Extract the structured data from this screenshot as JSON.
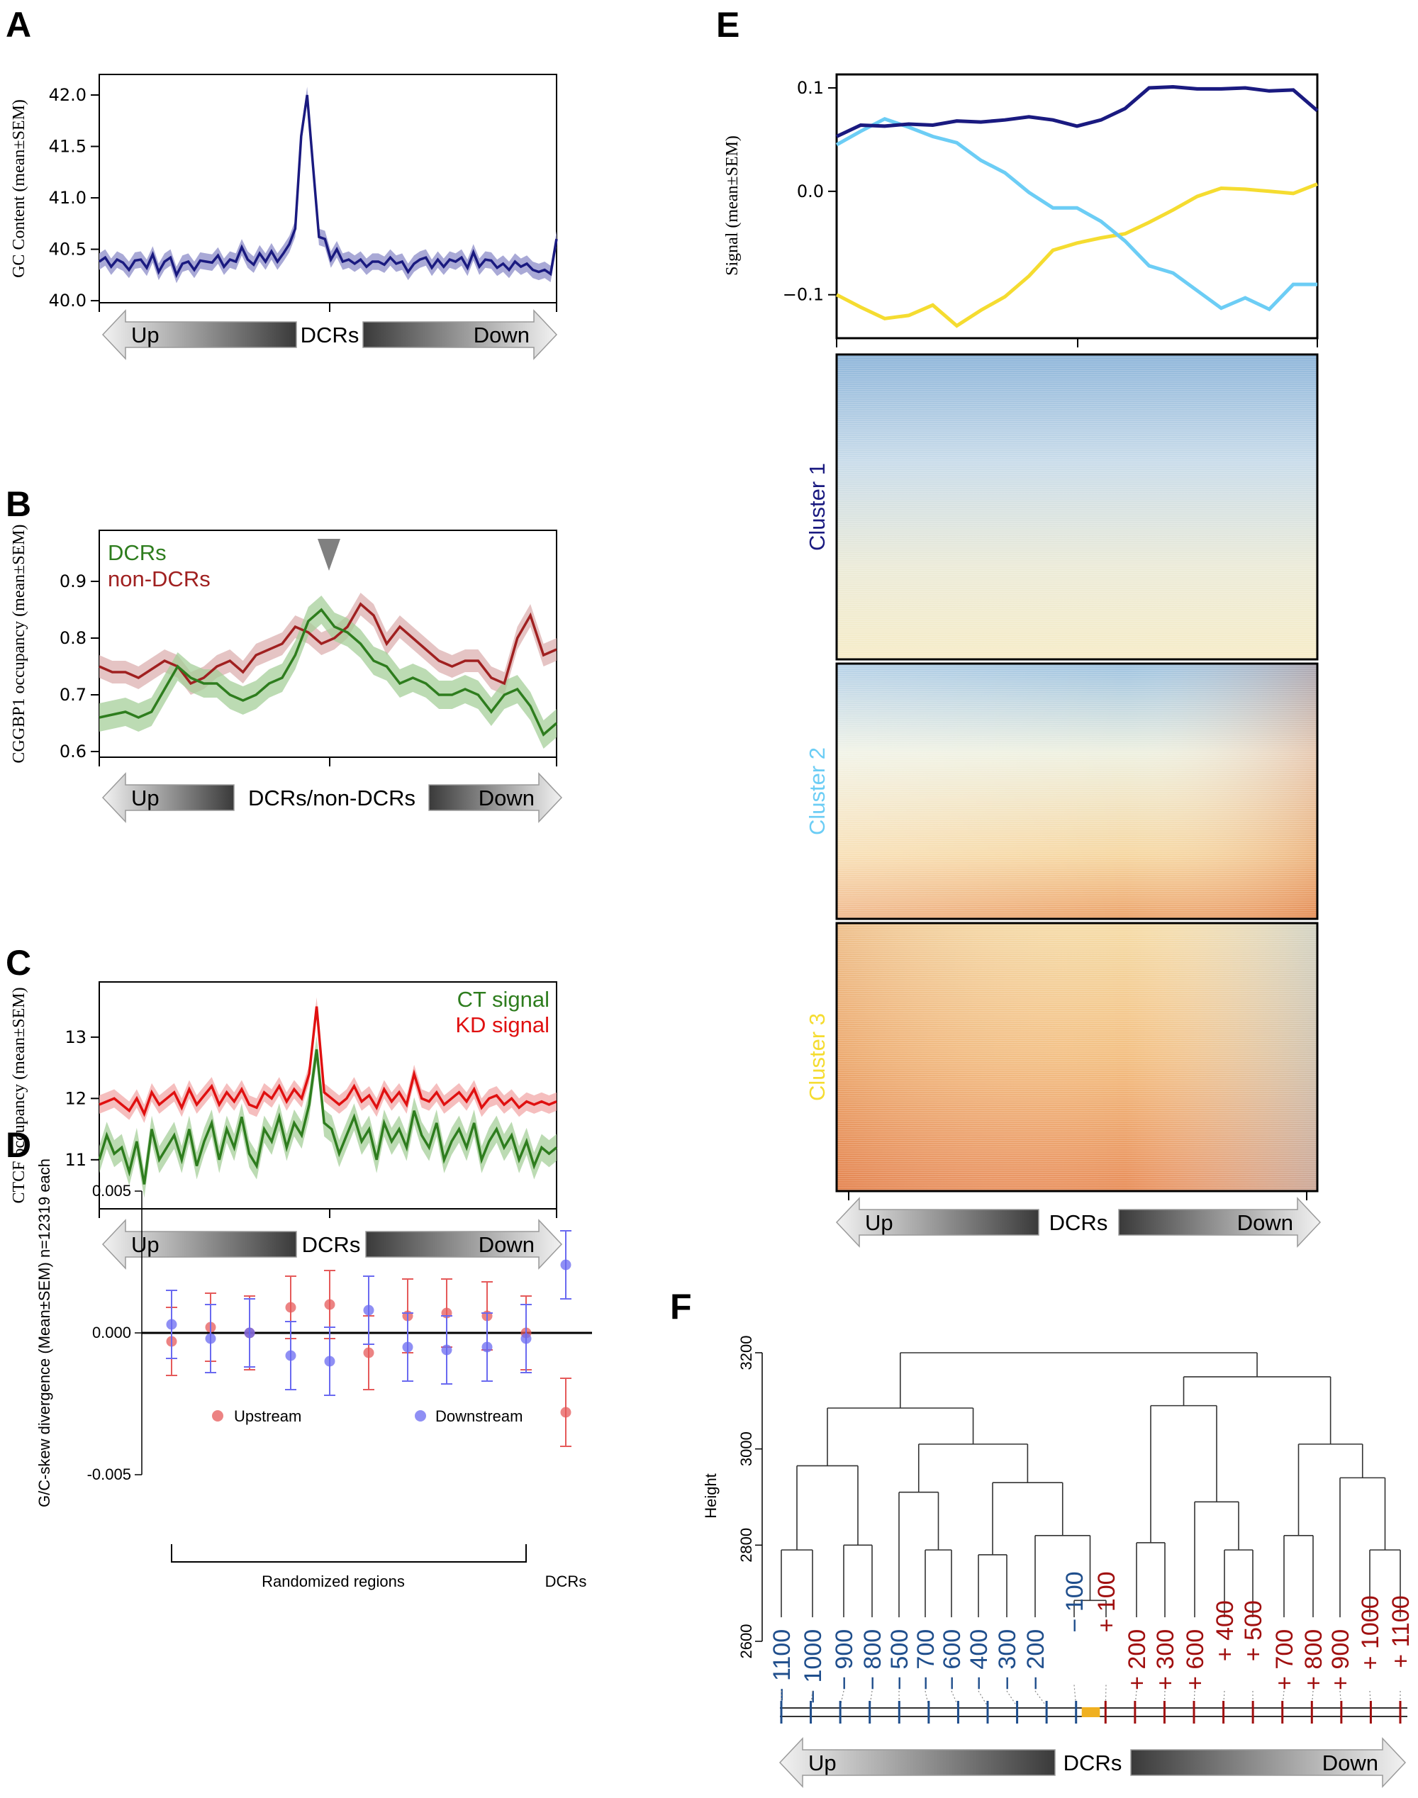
{
  "colors": {
    "navy": "#1a1a80",
    "navy_band": "#a9a9d6",
    "green": "#2e7d1e",
    "green_band": "#a6cf99",
    "darkred": "#a02020",
    "darkred_band": "#dcb0b0",
    "red": "#e01010",
    "red_band": "#f2a8a8",
    "cluster1": "#1a1a80",
    "cluster2": "#6ccdf5",
    "cluster3": "#f5dc30",
    "upstream": "#e55a5a",
    "downstream": "#6a6af0",
    "dend_blue": "#1f4e8c",
    "dend_red": "#a00f0f",
    "center_bar": "#f0b020"
  },
  "chart_data": [
    {
      "panel": "A",
      "type": "line",
      "ylabel": "GC Content (mean±SEM)",
      "ylim": [
        39.98,
        42.2
      ],
      "yticks": [
        "40.0",
        "40.5",
        "41.0",
        "41.5",
        "42.0"
      ],
      "arrow": {
        "left": "Up",
        "center": "DCRs",
        "right": "Down"
      },
      "series": [
        {
          "name": "GC content",
          "sem": 0.08,
          "values": [
            40.38,
            40.42,
            40.33,
            40.4,
            40.37,
            40.3,
            40.39,
            40.4,
            40.32,
            40.45,
            40.28,
            40.38,
            40.42,
            40.25,
            40.36,
            40.38,
            40.3,
            40.39,
            40.38,
            40.37,
            40.44,
            40.33,
            40.4,
            40.38,
            40.52,
            40.4,
            40.35,
            40.46,
            40.38,
            40.48,
            40.38,
            40.46,
            40.55,
            40.7,
            41.6,
            42.0,
            41.3,
            40.62,
            40.6,
            40.4,
            40.5,
            40.38,
            40.4,
            40.36,
            40.4,
            40.33,
            40.38,
            40.38,
            40.35,
            40.42,
            40.36,
            40.38,
            40.28,
            40.36,
            40.4,
            40.42,
            40.32,
            40.4,
            40.33,
            40.4,
            40.38,
            40.42,
            40.32,
            40.47,
            40.33,
            40.4,
            40.39,
            40.32,
            40.36,
            40.3,
            40.38,
            40.33,
            40.36,
            40.3,
            40.28,
            40.3,
            40.26,
            40.6
          ]
        }
      ]
    },
    {
      "panel": "B",
      "type": "line",
      "ylabel": "CGGBP1 occupancy (mean±SEM)",
      "ylim": [
        0.59,
        0.99
      ],
      "yticks": [
        "0.6",
        "0.7",
        "0.8",
        "0.9"
      ],
      "arrow": {
        "left": "Up",
        "center": "DCRs/non-DCRs",
        "right": "Down"
      },
      "series": [
        {
          "name": "DCRs",
          "sem": 0.025,
          "values": [
            0.66,
            0.665,
            0.67,
            0.66,
            0.67,
            0.71,
            0.75,
            0.73,
            0.72,
            0.72,
            0.7,
            0.69,
            0.7,
            0.72,
            0.73,
            0.77,
            0.83,
            0.85,
            0.82,
            0.81,
            0.79,
            0.76,
            0.75,
            0.72,
            0.73,
            0.72,
            0.7,
            0.7,
            0.71,
            0.7,
            0.67,
            0.7,
            0.71,
            0.68,
            0.63,
            0.65
          ]
        },
        {
          "name": "non-DCRs",
          "sem": 0.02,
          "values": [
            0.75,
            0.74,
            0.74,
            0.73,
            0.745,
            0.76,
            0.75,
            0.72,
            0.73,
            0.75,
            0.76,
            0.74,
            0.77,
            0.78,
            0.79,
            0.82,
            0.81,
            0.79,
            0.8,
            0.82,
            0.86,
            0.84,
            0.79,
            0.82,
            0.8,
            0.78,
            0.76,
            0.75,
            0.76,
            0.76,
            0.73,
            0.72,
            0.8,
            0.84,
            0.77,
            0.78
          ]
        }
      ]
    },
    {
      "panel": "C",
      "type": "line",
      "ylabel": "CTCF occupancy (mean±SEM)",
      "ylim": [
        10.2,
        13.9
      ],
      "yticks": [
        "11",
        "12",
        "13"
      ],
      "arrow": {
        "left": "Up",
        "center": "DCRs",
        "right": "Down"
      },
      "series": [
        {
          "name": "CT signal",
          "sem": 0.22,
          "values": [
            11.0,
            11.4,
            11.1,
            11.2,
            10.8,
            11.3,
            10.6,
            11.5,
            11.0,
            11.2,
            11.4,
            11.0,
            11.5,
            10.9,
            11.3,
            11.6,
            11.0,
            11.5,
            11.2,
            11.7,
            11.1,
            10.9,
            11.5,
            11.3,
            11.7,
            11.2,
            11.6,
            11.4,
            11.9,
            12.8,
            11.6,
            11.5,
            11.1,
            11.4,
            11.7,
            11.3,
            11.5,
            11.0,
            11.6,
            11.3,
            11.5,
            11.2,
            11.8,
            11.4,
            11.2,
            11.6,
            11.0,
            11.3,
            11.5,
            11.2,
            11.6,
            11.0,
            11.3,
            11.5,
            11.2,
            11.4,
            11.0,
            11.3,
            10.9,
            11.2,
            11.1,
            11.2
          ]
        },
        {
          "name": "KD signal",
          "sem": 0.15,
          "values": [
            11.9,
            11.95,
            12.0,
            11.9,
            11.8,
            12.0,
            11.75,
            12.1,
            11.9,
            12.0,
            12.1,
            11.85,
            12.15,
            11.9,
            12.05,
            12.2,
            11.9,
            12.1,
            11.95,
            12.15,
            11.9,
            11.85,
            12.1,
            12.0,
            12.2,
            11.95,
            12.15,
            12.0,
            12.4,
            13.5,
            12.1,
            12.0,
            11.9,
            12.0,
            12.2,
            11.95,
            12.05,
            11.85,
            12.15,
            11.95,
            12.1,
            11.9,
            12.4,
            12.0,
            11.95,
            12.1,
            11.9,
            12.0,
            12.1,
            11.95,
            12.15,
            11.85,
            12.0,
            12.05,
            11.9,
            12.0,
            11.85,
            11.95,
            11.9,
            11.95,
            11.9,
            11.95
          ]
        }
      ]
    },
    {
      "panel": "D",
      "type": "scatter",
      "ylabel": "G/C-skew divergence (Mean±SEM) n=12319 each",
      "ylim": [
        -0.005,
        0.005
      ],
      "yticks": [
        "-0.005",
        "0.000",
        "0.005"
      ],
      "legend": [
        "Upstream",
        "Downstream"
      ],
      "group_labels": {
        "randomized": "Randomized regions",
        "dcrs": "DCRs"
      },
      "series": [
        {
          "name": "Upstream",
          "values": [
            -0.0003,
            0.0002,
            0.0,
            0.0009,
            0.001,
            -0.0007,
            0.0006,
            0.0007,
            0.0006,
            0.0,
            -0.0028
          ],
          "errors": [
            0.0012,
            0.0012,
            0.0013,
            0.0011,
            0.0012,
            0.0013,
            0.0013,
            0.0012,
            0.0012,
            0.0013,
            0.0012
          ]
        },
        {
          "name": "Downstream",
          "values": [
            0.0003,
            -0.0002,
            0.0,
            -0.0008,
            -0.001,
            0.0008,
            -0.0005,
            -0.0006,
            -0.0005,
            -0.0002,
            0.0024
          ],
          "errors": [
            0.0012,
            0.0012,
            0.0012,
            0.0012,
            0.0012,
            0.0012,
            0.0012,
            0.0012,
            0.0012,
            0.0012,
            0.0012
          ]
        }
      ]
    },
    {
      "panel": "E",
      "type": "line",
      "ylabel": "Signal (mean±SEM)",
      "ylim": [
        -0.142,
        0.113
      ],
      "yticks": [
        "0.1",
        "0.0",
        "−0.1"
      ],
      "arrow": {
        "left": "Up",
        "center": "DCRs",
        "right": "Down"
      },
      "series": [
        {
          "name": "Cluster 1",
          "values": [
            0.053,
            0.064,
            0.063,
            0.065,
            0.064,
            0.068,
            0.067,
            0.069,
            0.072,
            0.069,
            0.063,
            0.069,
            0.08,
            0.1,
            0.101,
            0.099,
            0.099,
            0.1,
            0.097,
            0.098,
            0.078
          ]
        },
        {
          "name": "Cluster 2",
          "values": [
            0.045,
            0.058,
            0.07,
            0.062,
            0.053,
            0.047,
            0.03,
            0.018,
            -0.001,
            -0.016,
            -0.016,
            -0.029,
            -0.048,
            -0.072,
            -0.079,
            -0.096,
            -0.113,
            -0.103,
            -0.114,
            -0.09,
            -0.09
          ]
        },
        {
          "name": "Cluster 3",
          "values": [
            -0.1,
            -0.112,
            -0.123,
            -0.12,
            -0.11,
            -0.13,
            -0.115,
            -0.102,
            -0.082,
            -0.057,
            -0.05,
            -0.045,
            -0.041,
            -0.03,
            -0.018,
            -0.005,
            0.003,
            0.002,
            0.0,
            -0.002,
            0.007
          ]
        }
      ],
      "heatmap_labels": [
        "Cluster 1",
        "Cluster 2",
        "Cluster 3"
      ]
    },
    {
      "panel": "F",
      "type": "dendrogram",
      "ylabel": "Height",
      "ylim": [
        2600,
        3200
      ],
      "yticks": [
        "2600",
        "2800",
        "3000",
        "3200"
      ],
      "arrow": {
        "left": "Up",
        "center": "DCRs",
        "right": "Down"
      },
      "leaf_labels": [
        "− 1100",
        "− 1000",
        "− 900",
        "− 800",
        "− 500",
        "− 700",
        "− 600",
        "− 400",
        "− 300",
        "− 200",
        "− 100",
        "+ 100",
        "+ 200",
        "+ 300",
        "+ 600",
        "+ 400",
        "+ 500",
        "+ 700",
        "+ 800",
        "+ 900",
        "+ 1000",
        "+ 1100"
      ],
      "merge_heights": {
        "m1100_1000": 2790,
        "m900_800": 2800,
        "m_up4": 2965,
        "m700_600": 2790,
        "m500_700_600": 2910,
        "m400_300": 2780,
        "m_upper_mid": 2930,
        "m200_center": 2820,
        "m100_100": 2685,
        "m_mid": 3010,
        "m_left": 3085,
        "m200_300": 2805,
        "m400_500": 2790,
        "m600_45": 2890,
        "m_down_a": 3090,
        "m700_800": 2820,
        "m1000_1100": 2790,
        "m900_1011": 2940,
        "m_down_b": 3010,
        "m_right": 3150,
        "root": 3200
      }
    }
  ],
  "panels": {
    "A": "A",
    "B": "B",
    "C": "C",
    "D": "D",
    "E": "E",
    "F": "F"
  }
}
